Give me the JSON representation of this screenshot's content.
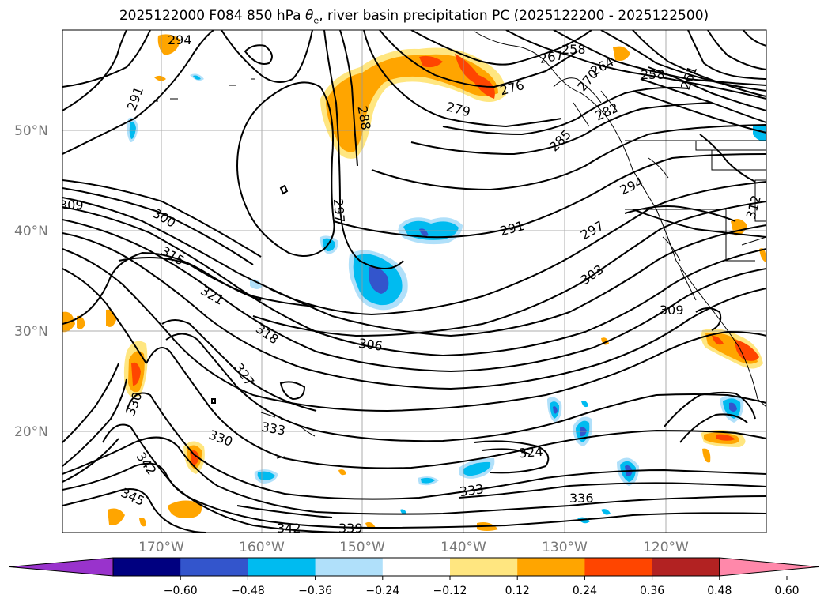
{
  "title": "2025122000 F084 850 hPa θe, river basin precipitation PC (2025122200 - 2025122500)",
  "title_parts": {
    "prefix": "2025122000 F084 850 hPa ",
    "symbol": "θ",
    "subscript": "e",
    "suffix": ", river basin precipitation PC (2025122200 - 2025122500)"
  },
  "latitude_labels": [
    "50°N",
    "40°N",
    "30°N",
    "20°N"
  ],
  "longitude_labels": [
    "170°W",
    "160°W",
    "150°W",
    "140°W",
    "130°W",
    "120°W"
  ],
  "contour_labels": [
    "294",
    "291",
    "288",
    "279",
    "276",
    "267",
    "258",
    "264",
    "258",
    "261",
    "270",
    "282",
    "285",
    "294",
    "297",
    "291",
    "297",
    "303",
    "309",
    "300",
    "309",
    "315",
    "321",
    "318",
    "306",
    "312",
    "327",
    "330",
    "333",
    "330",
    "342",
    "345",
    "324",
    "333",
    "336",
    "342",
    "339"
  ],
  "colorbar": {
    "tick_labels": [
      "−0.60",
      "−0.48",
      "−0.36",
      "−0.24",
      "−0.12",
      "0.12",
      "0.24",
      "0.36",
      "0.48",
      "0.60"
    ],
    "colors": [
      "#9933cc",
      "#000080",
      "#3355cc",
      "#00bbf0",
      "#b0e0fa",
      "#ffffff",
      "#ffe680",
      "#ffa500",
      "#ff4500",
      "#b22222",
      "#ff88aa"
    ]
  },
  "anomaly_colors": {
    "orange": "#ffa500",
    "light_yellow": "#ffe680",
    "red": "#ff4500",
    "cyan": "#00bbf0",
    "light_cyan": "#b0e0fa",
    "blue": "#3355cc"
  }
}
